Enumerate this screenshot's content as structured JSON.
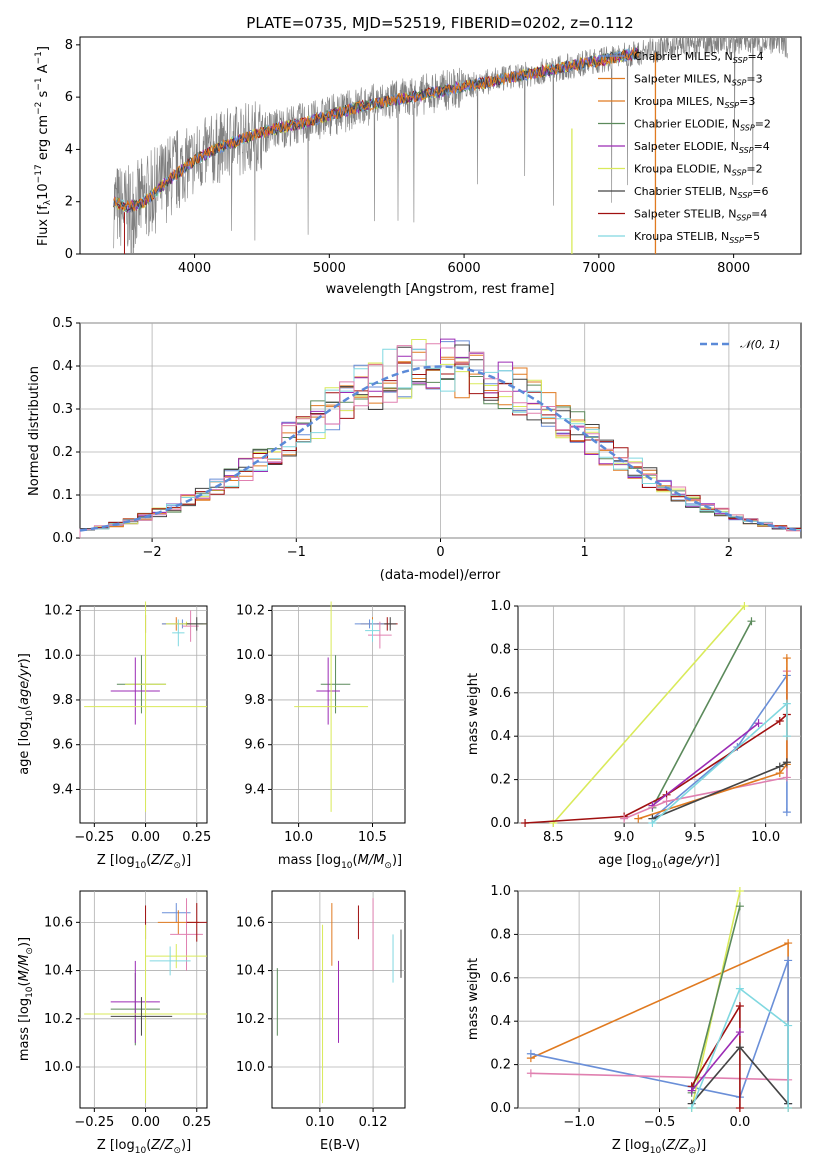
{
  "figure_title": "PLATE=0735, MJD=52519, FIBERID=0202, z=0.112",
  "series_colors": [
    "#6a8fd8",
    "#e07a20",
    "#e07a20",
    "#5b8a5b",
    "#9b2bb5",
    "#d9ea5a",
    "#444444",
    "#a01010",
    "#80d8e0",
    "#e080b0"
  ],
  "chart_data": [
    {
      "id": "spectrum",
      "type": "line",
      "title": "PLATE=0735, MJD=52519, FIBERID=0202, z=0.112",
      "xlabel": "wavelength [Angstrom, rest frame]",
      "ylabel": "Flux [fλ10⁻¹⁷ erg cm⁻² s⁻¹ A⁻¹]",
      "xlim": [
        3150,
        8500
      ],
      "ylim": [
        0,
        8.3
      ],
      "xticks": [
        4000,
        5000,
        6000,
        7000,
        8000
      ],
      "yticks": [
        0,
        2,
        4,
        6,
        8
      ],
      "grid": false,
      "legend_position": "top-right",
      "legend": [
        {
          "label": "Chabrier MILES, N",
          "sub": "SSP",
          "suffix": "=4",
          "color": "#6a8fd8"
        },
        {
          "label": "Salpeter MILES, N",
          "sub": "SSP",
          "suffix": "=3",
          "color": "#e07a20"
        },
        {
          "label": "Kroupa MILES, N",
          "sub": "SSP",
          "suffix": "=3",
          "color": "#e07a20"
        },
        {
          "label": "Chabrier ELODIE, N",
          "sub": "SSP",
          "suffix": "=2",
          "color": "#5b8a5b"
        },
        {
          "label": "Salpeter ELODIE, N",
          "sub": "SSP",
          "suffix": "=4",
          "color": "#9b2bb5"
        },
        {
          "label": "Kroupa ELODIE, N",
          "sub": "SSP",
          "suffix": "=2",
          "color": "#d9ea5a"
        },
        {
          "label": "Chabrier STELIB, N",
          "sub": "SSP",
          "suffix": "=6",
          "color": "#444444"
        },
        {
          "label": "Salpeter STELIB, N",
          "sub": "SSP",
          "suffix": "=4",
          "color": "#a01010"
        },
        {
          "label": "Kroupa STELIB, N",
          "sub": "SSP",
          "suffix": "=5",
          "color": "#80d8e0"
        }
      ],
      "data_continuum": {
        "x": [
          3400,
          3500,
          3600,
          3700,
          3800,
          3900,
          4000,
          4100,
          4200,
          4300,
          4400,
          4500,
          4600,
          4700,
          4800,
          4900,
          5000,
          5100,
          5200,
          5300,
          5400,
          5500,
          5600,
          5700,
          5800,
          5900,
          6000,
          6100,
          6200,
          6300,
          6400,
          6500,
          6600,
          6700,
          6800,
          6900,
          7000,
          7100,
          7200,
          7300,
          7400,
          7500,
          7600,
          7700,
          7800,
          7900,
          8000,
          8100,
          8200,
          8300,
          8400
        ],
        "y": [
          1.9,
          1.7,
          2.0,
          2.4,
          2.9,
          3.3,
          3.6,
          3.9,
          4.1,
          4.3,
          4.5,
          4.6,
          4.8,
          4.9,
          5.0,
          5.1,
          5.3,
          5.4,
          5.6,
          5.7,
          5.8,
          5.9,
          6.0,
          6.1,
          6.2,
          6.3,
          6.4,
          6.5,
          6.6,
          6.7,
          6.8,
          6.9,
          7.0,
          7.1,
          7.2,
          7.3,
          7.4,
          7.5,
          7.6,
          7.7,
          7.8,
          7.9,
          8.0,
          8.0,
          8.1,
          8.1,
          8.1,
          8.2,
          8.1,
          8.1,
          8.0
        ]
      },
      "model_continuum": {
        "x": [
          3400,
          3500,
          3600,
          3700,
          3800,
          3900,
          4000,
          4200,
          4400,
          4600,
          4800,
          5000,
          5200,
          5400,
          5600,
          5800,
          6000,
          6200,
          6400,
          6600,
          6800,
          7000,
          7200,
          7300
        ],
        "y": [
          2.0,
          1.8,
          1.9,
          2.3,
          2.8,
          3.2,
          3.6,
          4.1,
          4.5,
          4.8,
          5.0,
          5.3,
          5.6,
          5.8,
          6.0,
          6.2,
          6.4,
          6.6,
          6.8,
          7.0,
          7.2,
          7.4,
          7.6,
          7.7
        ]
      }
    },
    {
      "id": "residuals",
      "type": "histogram",
      "xlabel": "(data-model)/error",
      "ylabel": "Normed distribution",
      "xlim": [
        -2.5,
        2.5
      ],
      "ylim": [
        0,
        0.5
      ],
      "xticks": [
        -2,
        -1,
        0,
        1,
        2
      ],
      "yticks": [
        0.0,
        0.1,
        0.2,
        0.3,
        0.4,
        0.5
      ],
      "grid": true,
      "legend_position": "top-right",
      "legend": [
        {
          "label": "𝒩(0, 1)",
          "color": "#5b8ad8"
        }
      ],
      "bin_width": 0.1
    },
    {
      "id": "age-vs-Z",
      "type": "scatter",
      "xlabel": "Z [log₁₀(Z/Z⊙)]",
      "ylabel": "age  [log₁₀(age/yr)]",
      "xlim": [
        -0.32,
        0.3
      ],
      "ylim": [
        9.25,
        10.22
      ],
      "xticks": [
        -0.25,
        0.0,
        0.25
      ],
      "yticks": [
        9.4,
        9.6,
        9.8,
        10.0,
        10.2
      ],
      "grid": true
    },
    {
      "id": "age-vs-mass",
      "type": "scatter",
      "xlabel": "mass [log₁₀(M/M⊙)]",
      "xlim": [
        9.82,
        10.72
      ],
      "ylim": [
        9.25,
        10.22
      ],
      "xticks": [
        10.0,
        10.5
      ],
      "yticks": [
        9.4,
        9.6,
        9.8,
        10.0,
        10.2
      ],
      "grid": true
    },
    {
      "id": "weight-vs-age",
      "type": "line",
      "xlabel": "age  [log₁₀(age/yr)]",
      "ylabel": "mass weight",
      "xlim": [
        8.25,
        10.25
      ],
      "ylim": [
        0,
        1.0
      ],
      "xticks": [
        8.5,
        9.0,
        9.5,
        10.0
      ],
      "yticks": [
        0.0,
        0.2,
        0.4,
        0.6,
        0.8,
        1.0
      ],
      "grid": true,
      "series": [
        {
          "color": "#d9ea5a",
          "x": [
            8.5,
            9.85
          ],
          "y": [
            0.0,
            1.0
          ]
        },
        {
          "color": "#5b8a5b",
          "x": [
            9.2,
            9.9
          ],
          "y": [
            0.07,
            0.93
          ]
        },
        {
          "color": "#6a8fd8",
          "x": [
            9.2,
            9.8,
            10.15,
            10.15
          ],
          "y": [
            0.02,
            0.35,
            0.68,
            0.05
          ]
        },
        {
          "color": "#a01010",
          "x": [
            8.3,
            9.0,
            9.3,
            10.1,
            10.15
          ],
          "y": [
            0.0,
            0.03,
            0.13,
            0.47,
            0.5
          ]
        },
        {
          "color": "#9b2bb5",
          "x": [
            9.2,
            9.95
          ],
          "y": [
            0.08,
            0.46
          ]
        },
        {
          "color": "#e080b0",
          "x": [
            9.0,
            9.3,
            10.15,
            10.15
          ],
          "y": [
            0.02,
            0.1,
            0.21,
            0.7
          ]
        },
        {
          "color": "#e07a20",
          "x": [
            9.1,
            10.1,
            10.15,
            10.15
          ],
          "y": [
            0.02,
            0.23,
            0.27,
            0.76
          ]
        },
        {
          "color": "#444444",
          "x": [
            9.2,
            10.1,
            10.15
          ],
          "y": [
            0.02,
            0.26,
            0.28
          ]
        },
        {
          "color": "#80d8e0",
          "x": [
            9.2,
            10.15,
            10.15
          ],
          "y": [
            0.0,
            0.55,
            0.4
          ]
        }
      ]
    },
    {
      "id": "mass-vs-Z",
      "type": "scatter",
      "xlabel": "Z [log₁₀(Z/Z⊙)]",
      "ylabel": "mass [log₁₀(M/M⊙)]",
      "xlim": [
        -0.32,
        0.3
      ],
      "ylim": [
        9.83,
        10.73
      ],
      "xticks": [
        -0.25,
        0.0,
        0.25
      ],
      "yticks": [
        10.0,
        10.2,
        10.4,
        10.6
      ],
      "grid": true
    },
    {
      "id": "mass-vs-ebv",
      "type": "scatter",
      "xlabel": "E(B-V)",
      "xlim": [
        0.082,
        0.132
      ],
      "ylim": [
        9.83,
        10.73
      ],
      "xticks": [
        0.1,
        0.12
      ],
      "yticks": [
        10.0,
        10.2,
        10.4,
        10.6
      ],
      "grid": true
    },
    {
      "id": "weight-vs-Z",
      "type": "line",
      "xlabel": "Z [log₁₀(Z/Z⊙)]",
      "ylabel": "mass weight",
      "xlim": [
        -1.38,
        0.38
      ],
      "ylim": [
        0,
        1.0
      ],
      "xticks": [
        -1.0,
        -0.5,
        0.0
      ],
      "yticks": [
        0.0,
        0.2,
        0.4,
        0.6,
        0.8,
        1.0
      ],
      "grid": true,
      "series": [
        {
          "color": "#e07a20",
          "x": [
            -1.3,
            0.3,
            0.3
          ],
          "y": [
            0.23,
            0.76,
            0.0
          ]
        },
        {
          "color": "#6a8fd8",
          "x": [
            -1.3,
            0.0,
            0.3,
            0.3
          ],
          "y": [
            0.25,
            0.05,
            0.68,
            0.02
          ]
        },
        {
          "color": "#e080b0",
          "x": [
            -1.3,
            0.3
          ],
          "y": [
            0.16,
            0.13
          ]
        },
        {
          "color": "#d9ea5a",
          "x": [
            -0.3,
            0.0
          ],
          "y": [
            0.0,
            1.0
          ]
        },
        {
          "color": "#5b8a5b",
          "x": [
            -0.3,
            0.0
          ],
          "y": [
            0.07,
            0.93
          ]
        },
        {
          "color": "#a01010",
          "x": [
            -0.3,
            0.0,
            0.0
          ],
          "y": [
            0.1,
            0.47,
            0.0
          ]
        },
        {
          "color": "#444444",
          "x": [
            -0.3,
            0.0,
            0.3
          ],
          "y": [
            0.02,
            0.28,
            0.02
          ]
        },
        {
          "color": "#80d8e0",
          "x": [
            -0.3,
            0.0,
            0.3,
            0.3
          ],
          "y": [
            0.0,
            0.55,
            0.38,
            0.0
          ]
        },
        {
          "color": "#9b2bb5",
          "x": [
            -0.3,
            0.0
          ],
          "y": [
            0.08,
            0.35
          ]
        }
      ]
    }
  ]
}
